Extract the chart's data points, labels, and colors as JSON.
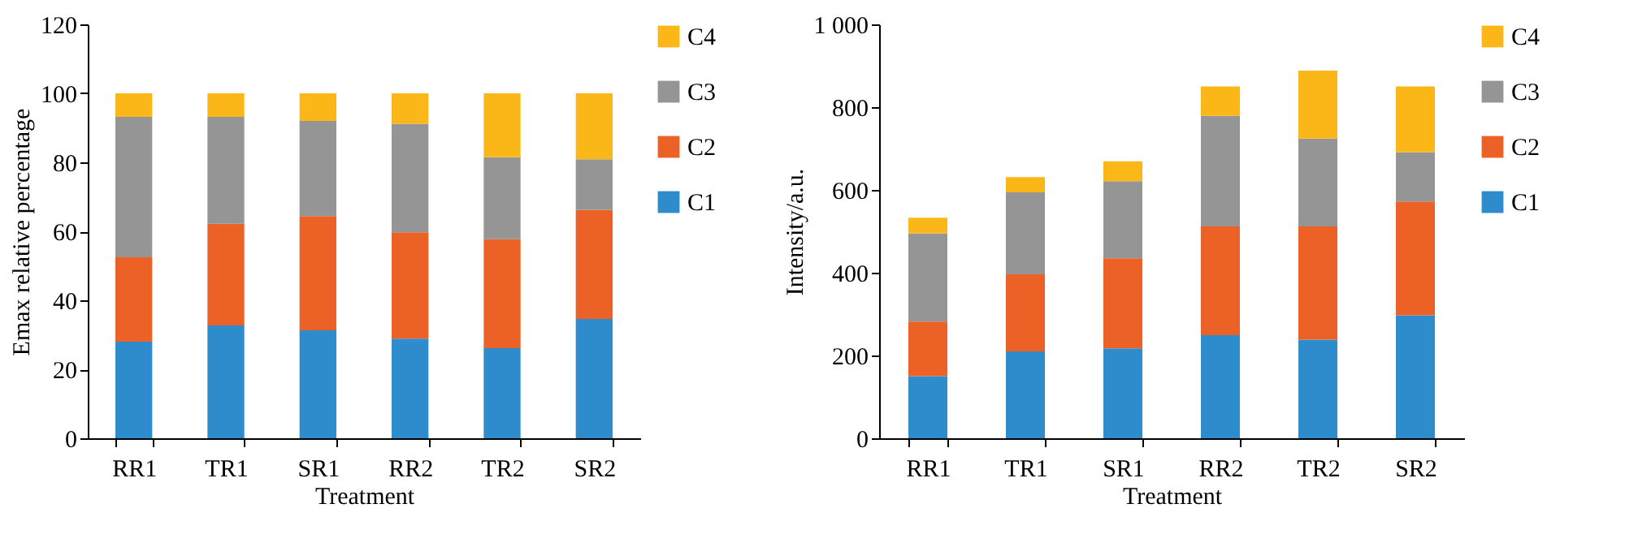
{
  "chart_data": [
    {
      "type": "bar",
      "stacked": true,
      "xlabel": "Treatment",
      "ylabel": "Emax relative percentage",
      "categories": [
        "RR1",
        "TR1",
        "SR1",
        "RR2",
        "TR2",
        "SR2"
      ],
      "ylim": [
        0,
        120
      ],
      "yticks": [
        0,
        20,
        40,
        60,
        80,
        100,
        120
      ],
      "grid": false,
      "legend": "right",
      "series": [
        {
          "name": "C1",
          "color": "#2e8ccc",
          "values": [
            28,
            32.7,
            31.3,
            28.9,
            26.1,
            34.6
          ]
        },
        {
          "name": "C2",
          "color": "#ec6126",
          "values": [
            24.5,
            29.5,
            33.1,
            30.8,
            31.6,
            31.6
          ]
        },
        {
          "name": "C3",
          "color": "#959595",
          "values": [
            40.7,
            31,
            27.6,
            31.5,
            23.8,
            14.7
          ]
        },
        {
          "name": "C4",
          "color": "#fbb718",
          "values": [
            6.8,
            6.8,
            8,
            8.8,
            18.5,
            19.1
          ]
        }
      ]
    },
    {
      "type": "bar",
      "stacked": true,
      "xlabel": "Treatment",
      "ylabel": "Intensity/a.u.",
      "categories": [
        "RR1",
        "TR1",
        "SR1",
        "RR2",
        "TR2",
        "SR2"
      ],
      "ylim": [
        0,
        1000
      ],
      "yticks": [
        0,
        200,
        400,
        600,
        800,
        {
          "value": 1000,
          "label": "1 000"
        }
      ],
      "grid": false,
      "legend": "right",
      "series": [
        {
          "name": "C1",
          "color": "#2e8ccc",
          "values": [
            150,
            210,
            217,
            249,
            238,
            297
          ]
        },
        {
          "name": "C2",
          "color": "#ec6126",
          "values": [
            132,
            186,
            218,
            263,
            274,
            275
          ]
        },
        {
          "name": "C3",
          "color": "#959595",
          "values": [
            213,
            198,
            186,
            267,
            212,
            119
          ]
        },
        {
          "name": "C4",
          "color": "#fbb718",
          "values": [
            38,
            37,
            48,
            71,
            164,
            159
          ]
        }
      ]
    }
  ]
}
